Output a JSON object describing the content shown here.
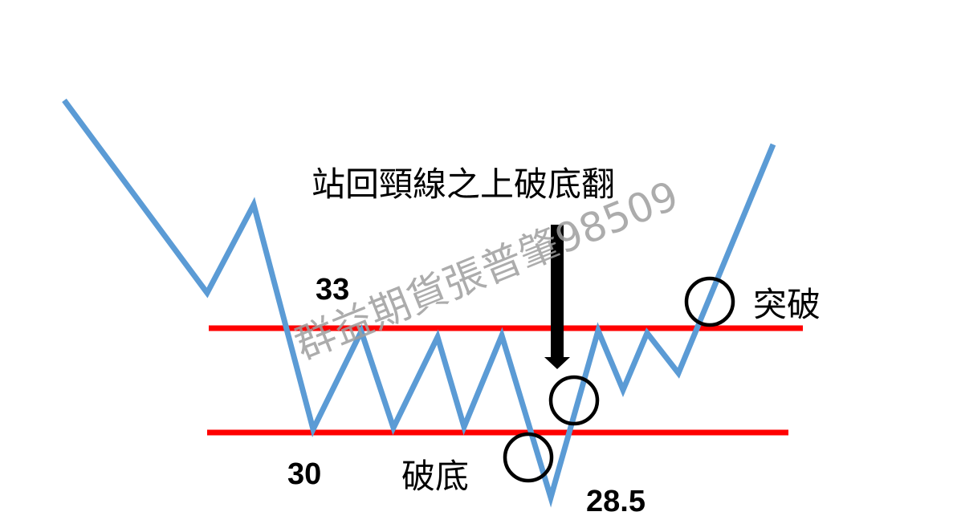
{
  "title": "站回頸線之上破底翻",
  "levels": {
    "resistance": "33",
    "support": "30",
    "low": "28.5"
  },
  "labels": {
    "breakdown": "破底",
    "breakout": "突破"
  },
  "watermark": "群益期貨張普肇98509",
  "colors": {
    "price_line": "#5b9bd5",
    "level_lines": "#ff0000",
    "text": "#000000"
  }
}
